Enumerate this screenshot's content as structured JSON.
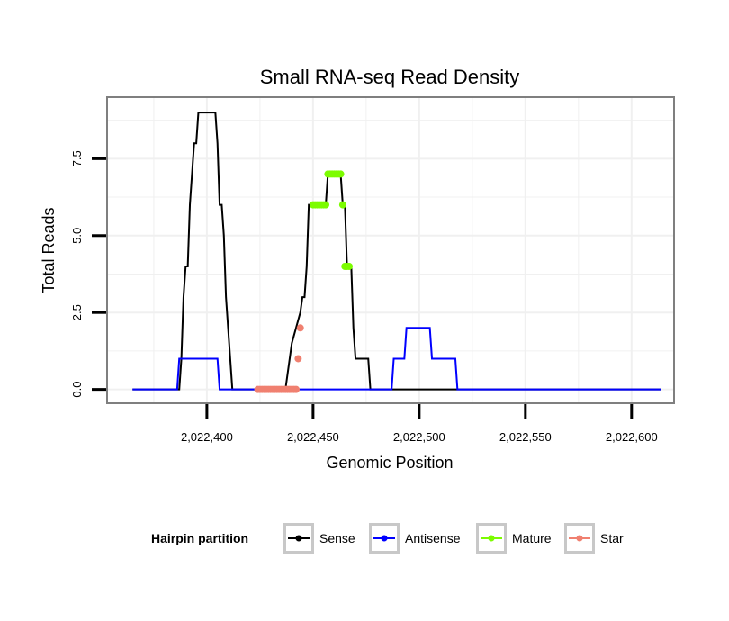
{
  "colors": {
    "sense": "#000000",
    "antisense": "#0000ff",
    "mature": "#7cfc00",
    "star": "#f08070",
    "panel_border": "#7f7f7f",
    "grid": "#f0f0f0",
    "legend_key_border": "#c8c8c8"
  },
  "chart_data": {
    "type": "line",
    "title": "Small RNA-seq Read Density",
    "xlabel": "Genomic Position",
    "ylabel": "Total Reads",
    "xlim": [
      2022353,
      2022620
    ],
    "ylim": [
      -0.45,
      9.5
    ],
    "x_ticks": [
      2022400,
      2022450,
      2022500,
      2022550,
      2022600
    ],
    "x_tick_labels": [
      "2,022,400",
      "2,022,450",
      "2,022,500",
      "2,022,550",
      "2,022,600"
    ],
    "y_ticks": [
      0,
      2.5,
      5,
      7.5
    ],
    "y_tick_labels": [
      "0.0",
      "2.5",
      "5.0",
      "7.5"
    ],
    "grid": true,
    "legend": {
      "title": "Hairpin partition",
      "position": "bottom",
      "entries": [
        {
          "key": "sense",
          "label": "Sense"
        },
        {
          "key": "antisense",
          "label": "Antisense"
        },
        {
          "key": "mature",
          "label": "Mature"
        },
        {
          "key": "star",
          "label": "Star"
        }
      ]
    },
    "series": [
      {
        "name": "Sense",
        "key": "sense",
        "kind": "line",
        "x": [
          2022365,
          2022387,
          2022388,
          2022389,
          2022390,
          2022391,
          2022392,
          2022393,
          2022394,
          2022395,
          2022396,
          2022404,
          2022405,
          2022406,
          2022407,
          2022408,
          2022409,
          2022410,
          2022411,
          2022412,
          2022414,
          2022415,
          2022436,
          2022437,
          2022438,
          2022439,
          2022440,
          2022442,
          2022444,
          2022445,
          2022446,
          2022447,
          2022448,
          2022449,
          2022450,
          2022451,
          2022452,
          2022453,
          2022454,
          2022455,
          2022456,
          2022457,
          2022458,
          2022463,
          2022464,
          2022465,
          2022466,
          2022467,
          2022468,
          2022469,
          2022470,
          2022471,
          2022472,
          2022476,
          2022477,
          2022614
        ],
        "y": [
          0,
          0,
          1,
          3,
          4,
          4,
          6,
          7,
          8,
          8,
          9,
          9,
          8,
          6,
          6,
          5,
          3,
          2,
          1,
          0,
          0,
          0,
          0,
          0,
          0.5,
          1,
          1.5,
          2,
          2.5,
          3,
          3,
          4,
          6,
          6,
          6,
          6,
          6,
          6,
          6,
          6,
          6,
          7,
          7,
          7,
          6,
          6,
          4,
          4,
          4,
          2,
          1,
          1,
          1,
          1,
          0,
          0
        ]
      },
      {
        "name": "Antisense",
        "key": "antisense",
        "kind": "line",
        "x": [
          2022365,
          2022386,
          2022387,
          2022405,
          2022406,
          2022487,
          2022488,
          2022493,
          2022494,
          2022505,
          2022506,
          2022517,
          2022518,
          2022614
        ],
        "y": [
          0,
          0,
          1,
          1,
          0,
          0,
          1,
          1,
          2,
          2,
          1,
          1,
          0,
          0
        ]
      },
      {
        "name": "Mature",
        "key": "mature",
        "kind": "points",
        "x": [
          2022450,
          2022451,
          2022452,
          2022453,
          2022454,
          2022455,
          2022456,
          2022457,
          2022458,
          2022459,
          2022460,
          2022461,
          2022462,
          2022463,
          2022464,
          2022465,
          2022466,
          2022467
        ],
        "y": [
          6,
          6,
          6,
          6,
          6,
          6,
          6,
          7,
          7,
          7,
          7,
          7,
          7,
          7,
          6,
          4,
          4,
          4
        ]
      },
      {
        "name": "Star",
        "key": "star",
        "kind": "points",
        "x": [
          2022424,
          2022425,
          2022426,
          2022427,
          2022428,
          2022429,
          2022430,
          2022431,
          2022432,
          2022433,
          2022434,
          2022435,
          2022436,
          2022437,
          2022438,
          2022439,
          2022440,
          2022441,
          2022442,
          2022443,
          2022444
        ],
        "y": [
          0,
          0,
          0,
          0,
          0,
          0,
          0,
          0,
          0,
          0,
          0,
          0,
          0,
          0,
          0,
          0,
          0,
          0,
          0,
          1,
          2
        ]
      }
    ]
  }
}
